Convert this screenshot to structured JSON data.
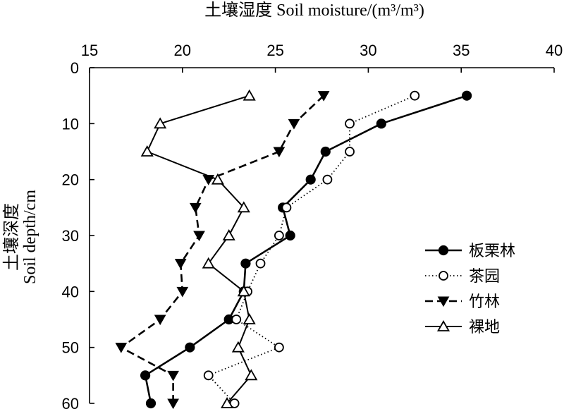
{
  "chart_data": {
    "type": "line",
    "xlabel": "土壤湿度 Soil moisture/(m³/m³)",
    "ylabel_line1": "土壤深度",
    "ylabel_line2": "Soil depth/cm",
    "xlim": [
      15,
      40
    ],
    "ylim": [
      0,
      60
    ],
    "x_axis_position": "top",
    "y_inverted": true,
    "grid": false,
    "legend_position": "right",
    "xticks": [
      15,
      20,
      25,
      30,
      35,
      40
    ],
    "yticks": [
      0,
      10,
      20,
      30,
      40,
      50,
      60
    ],
    "series": [
      {
        "name": "板栗林",
        "marker": "filled-circle",
        "line_style": "solid",
        "points": [
          [
            35.3,
            5
          ],
          [
            30.7,
            10
          ],
          [
            27.7,
            15
          ],
          [
            26.9,
            20
          ],
          [
            25.4,
            25
          ],
          [
            25.8,
            30
          ],
          [
            23.4,
            35
          ],
          [
            23.3,
            40
          ],
          [
            22.5,
            45
          ],
          [
            20.4,
            50
          ],
          [
            18.0,
            55
          ],
          [
            18.3,
            60
          ]
        ]
      },
      {
        "name": "茶园",
        "marker": "open-circle",
        "line_style": "dotted",
        "points": [
          [
            32.5,
            5
          ],
          [
            29.0,
            10
          ],
          [
            29.0,
            15
          ],
          [
            27.8,
            20
          ],
          [
            25.6,
            25
          ],
          [
            25.2,
            30
          ],
          [
            24.2,
            35
          ],
          [
            23.5,
            40
          ],
          [
            22.9,
            45
          ],
          [
            25.2,
            50
          ],
          [
            21.4,
            55
          ],
          [
            22.8,
            60
          ]
        ]
      },
      {
        "name": "竹林",
        "marker": "filled-triangle-down",
        "line_style": "dashed",
        "points": [
          [
            27.6,
            5
          ],
          [
            26.0,
            10
          ],
          [
            25.2,
            15
          ],
          [
            21.4,
            20
          ],
          [
            20.7,
            25
          ],
          [
            20.9,
            30
          ],
          [
            19.9,
            35
          ],
          [
            20.0,
            40
          ],
          [
            18.8,
            45
          ],
          [
            16.7,
            50
          ],
          [
            19.5,
            55
          ],
          [
            19.5,
            60
          ]
        ]
      },
      {
        "name": "裸地",
        "marker": "open-triangle-up",
        "line_style": "solid-thin",
        "points": [
          [
            23.6,
            5
          ],
          [
            18.8,
            10
          ],
          [
            18.1,
            15
          ],
          [
            21.9,
            20
          ],
          [
            23.3,
            25
          ],
          [
            22.5,
            30
          ],
          [
            21.4,
            35
          ],
          [
            23.3,
            40
          ],
          [
            23.6,
            45
          ],
          [
            23.0,
            50
          ],
          [
            23.7,
            55
          ],
          [
            22.4,
            60
          ]
        ]
      }
    ]
  }
}
